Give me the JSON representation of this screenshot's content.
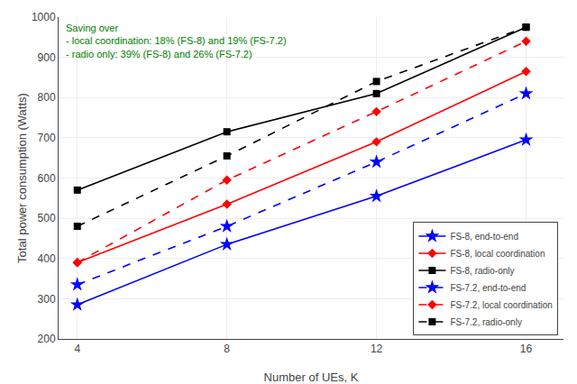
{
  "chart_data": {
    "type": "line",
    "x": [
      4,
      8,
      12,
      16
    ],
    "series": [
      {
        "name": "FS-8, end-to-end",
        "color": "#0000FF",
        "marker": "star",
        "line_style": "solid",
        "values": [
          285,
          435,
          555,
          695
        ]
      },
      {
        "name": "FS-8, local coordination",
        "color": "#FF0000",
        "marker": "diamond",
        "line_style": "solid",
        "values": [
          390,
          535,
          690,
          865
        ]
      },
      {
        "name": "FS-8, radio-only",
        "color": "#000000",
        "marker": "square",
        "line_style": "solid",
        "values": [
          570,
          715,
          810,
          975
        ]
      },
      {
        "name": "FS-7.2, end-to-end",
        "color": "#0000FF",
        "marker": "star",
        "line_style": "dash",
        "values": [
          335,
          480,
          640,
          810
        ]
      },
      {
        "name": "FS-7.2, local coordination",
        "color": "#FF0000",
        "marker": "diamond",
        "line_style": "dash",
        "values": [
          390,
          595,
          765,
          940
        ]
      },
      {
        "name": "FS-7.2, radio-only",
        "color": "#000000",
        "marker": "square",
        "line_style": "dash",
        "values": [
          480,
          655,
          840,
          975
        ]
      }
    ],
    "xlabel": "Number of UEs, K",
    "ylabel": "Total power consumption (Watts)",
    "xlim": [
      3.5,
      17
    ],
    "xticks": [
      4,
      8,
      12,
      16
    ],
    "ylim": [
      200,
      1000
    ],
    "yticks": [
      200,
      300,
      400,
      500,
      600,
      700,
      800,
      900,
      1000
    ],
    "grid": true,
    "legend": "lower right",
    "annotations": [
      {
        "text": "Saving over\n- local coordination: 18% (FS-8) and 19% (FS-7.2)\n- radio only: 39% (FS-8) and 26% (FS-7.2)",
        "color": "#008000"
      }
    ]
  }
}
